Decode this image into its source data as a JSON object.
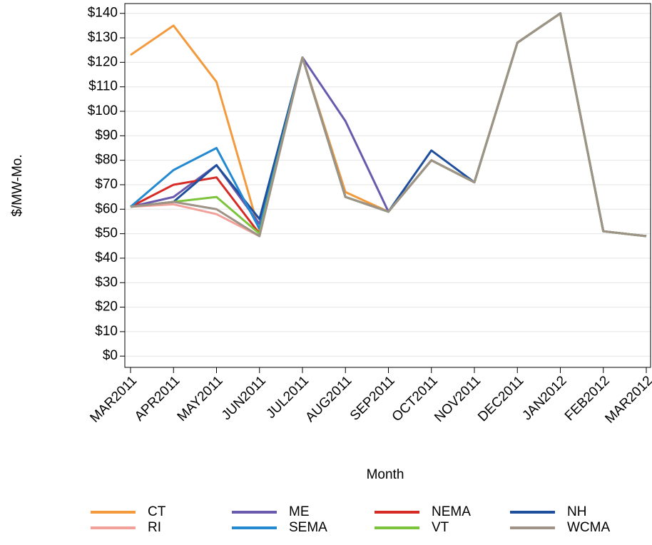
{
  "chart_data": {
    "type": "line",
    "y_label": "$/MW-Mo.",
    "x_label": "Month",
    "categories": [
      "MAR2011",
      "APR2011",
      "MAY2011",
      "JUN2011",
      "JUL2011",
      "AUG2011",
      "SEP2011",
      "OCT2011",
      "NOV2011",
      "DEC2011",
      "JAN2012",
      "FEB2012",
      "MAR2012"
    ],
    "ylim": [
      -4.6,
      144
    ],
    "yticks": [
      {
        "value": 0,
        "label": "$0"
      },
      {
        "value": 10,
        "label": "$10"
      },
      {
        "value": 20,
        "label": "$20"
      },
      {
        "value": 30,
        "label": "$30"
      },
      {
        "value": 40,
        "label": "$40"
      },
      {
        "value": 50,
        "label": "$50"
      },
      {
        "value": 60,
        "label": "$60"
      },
      {
        "value": 70,
        "label": "$70"
      },
      {
        "value": 80,
        "label": "$80"
      },
      {
        "value": 90,
        "label": "$90"
      },
      {
        "value": 100,
        "label": "$100"
      },
      {
        "value": 110,
        "label": "$110"
      },
      {
        "value": 120,
        "label": "$120"
      },
      {
        "value": 130,
        "label": "$130"
      },
      {
        "value": 140,
        "label": "$140"
      }
    ],
    "grid": true,
    "series": [
      {
        "name": "CT",
        "color": "#f39a3d",
        "values": [
          123,
          135,
          112,
          51,
          122,
          67,
          59,
          80,
          71,
          128,
          140,
          51,
          49
        ]
      },
      {
        "name": "ME",
        "color": "#6a5aad",
        "values": [
          61,
          65,
          78,
          54,
          122,
          96,
          59,
          80,
          71,
          128,
          140,
          51,
          49
        ]
      },
      {
        "name": "NEMA",
        "color": "#d62a26",
        "values": [
          61,
          70,
          73,
          50,
          122,
          65,
          59,
          80,
          71,
          128,
          140,
          51,
          49
        ]
      },
      {
        "name": "NH",
        "color": "#1f4f9c",
        "values": [
          61,
          63,
          78,
          56,
          122,
          65,
          59,
          84,
          71,
          128,
          140,
          51,
          49
        ]
      },
      {
        "name": "RI",
        "color": "#f2a09a",
        "values": [
          61,
          62,
          58,
          49,
          122,
          65,
          59,
          80,
          71,
          128,
          140,
          51,
          49
        ]
      },
      {
        "name": "SEMA",
        "color": "#2389d0",
        "values": [
          61,
          76,
          85,
          52,
          122,
          65,
          59,
          80,
          71,
          128,
          140,
          51,
          49
        ]
      },
      {
        "name": "VT",
        "color": "#7cc43c",
        "values": [
          61,
          63,
          65,
          50,
          122,
          65,
          59,
          80,
          71,
          128,
          140,
          51,
          49
        ]
      },
      {
        "name": "WCMA",
        "color": "#9e9386",
        "values": [
          61,
          63,
          60,
          49,
          122,
          65,
          59,
          80,
          71,
          128,
          140,
          51,
          49
        ]
      }
    ]
  }
}
